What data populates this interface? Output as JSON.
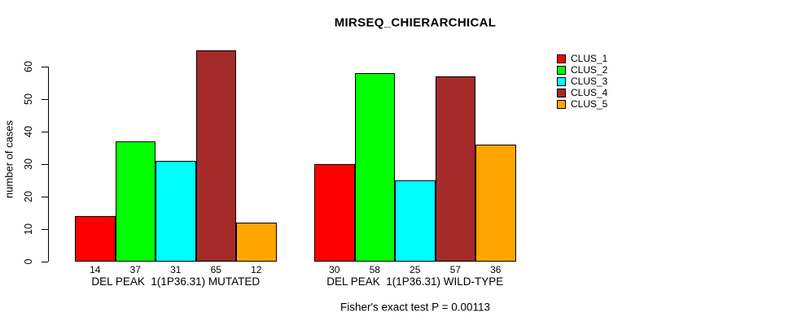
{
  "chart_data": {
    "type": "bar",
    "title": "MIRSEQ_CHIERARCHICAL",
    "xlabel": "",
    "ylabel": "number of cases",
    "ylim": [
      0,
      60
    ],
    "yticks": [
      0,
      10,
      20,
      30,
      40,
      50,
      60
    ],
    "grid": false,
    "legend_position": "right",
    "bar_value_labels_shown": true,
    "categories": [
      "DEL PEAK  1(1P36.31) MUTATED",
      "DEL PEAK  1(1P36.31) WILD-TYPE"
    ],
    "series": [
      {
        "name": "CLUS_1",
        "color": "#ff0000",
        "values": [
          14,
          30
        ]
      },
      {
        "name": "CLUS_2",
        "color": "#00ff00",
        "values": [
          37,
          58
        ]
      },
      {
        "name": "CLUS_3",
        "color": "#00ffff",
        "values": [
          31,
          25
        ]
      },
      {
        "name": "CLUS_4",
        "color": "#a52a2a",
        "values": [
          65,
          57
        ]
      },
      {
        "name": "CLUS_5",
        "color": "#ffa500",
        "values": [
          12,
          36
        ]
      }
    ],
    "footnote": "Fisher's exact test P = 0.00113"
  }
}
